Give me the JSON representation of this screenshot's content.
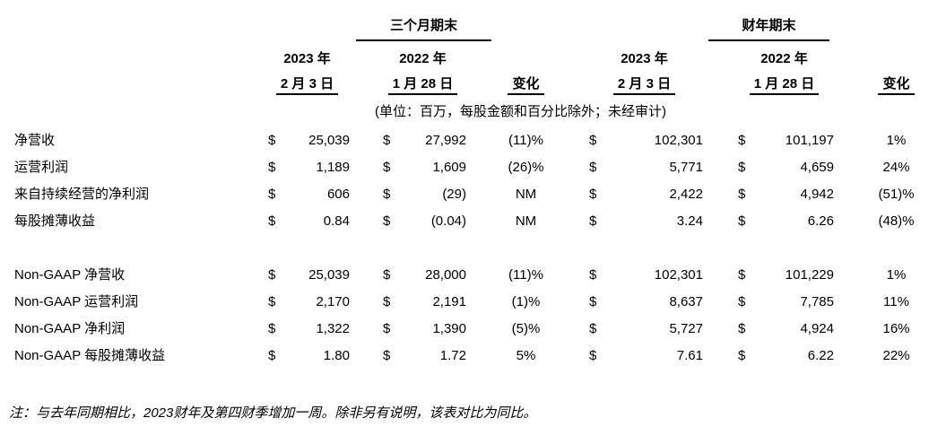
{
  "table": {
    "group_headers": {
      "three_months_ended": "三个月期末",
      "fiscal_year_ended": "财年期末"
    },
    "columns": {
      "q2023_year": "2023 年",
      "q2023_date": "2 月 3 日",
      "q2022_year": "2022 年",
      "q2022_date": "1 月 28 日",
      "q_change_label": "变化",
      "fy2023_year": "2023 年",
      "fy2023_date": "2 月 3 日",
      "fy2022_year": "2022 年",
      "fy2022_date": "1 月 28 日",
      "fy_change_label": "变化"
    },
    "unit_note": "(单位：百万，每股金额和百分比除外；未经审计)",
    "currency": "$",
    "gaap_rows": [
      {
        "label": "净营收",
        "q2023": "25,039",
        "q2022": "27,992",
        "q_change": "(11)%",
        "fy2023": "102,301",
        "fy2022": "101,197",
        "fy_change": "1%"
      },
      {
        "label": "运营利润",
        "q2023": "1,189",
        "q2022": "1,609",
        "q_change": "(26)%",
        "fy2023": "5,771",
        "fy2022": "4,659",
        "fy_change": "24%"
      },
      {
        "label": "来自持续经营的净利润",
        "q2023": "606",
        "q2022": "(29)",
        "q_change": "NM",
        "fy2023": "2,422",
        "fy2022": "4,942",
        "fy_change": "(51)%"
      },
      {
        "label": "每股摊薄收益",
        "q2023": "0.84",
        "q2022": "(0.04)",
        "q_change": "NM",
        "fy2023": "3.24",
        "fy2022": "6.26",
        "fy_change": "(48)%"
      }
    ],
    "non_gaap_rows": [
      {
        "label": "Non-GAAP 净营收",
        "q2023": "25,039",
        "q2022": "28,000",
        "q_change": "(11)%",
        "fy2023": "102,301",
        "fy2022": "101,229",
        "fy_change": "1%"
      },
      {
        "label": "Non-GAAP 运营利润",
        "q2023": "2,170",
        "q2022": "2,191",
        "q_change": "(1)%",
        "fy2023": "8,637",
        "fy2022": "7,785",
        "fy_change": "11%"
      },
      {
        "label": "Non-GAAP 净利润",
        "q2023": "1,322",
        "q2022": "1,390",
        "q_change": "(5)%",
        "fy2023": "5,727",
        "fy2022": "4,924",
        "fy_change": "16%"
      },
      {
        "label": "Non-GAAP 每股摊薄收益",
        "q2023": "1.80",
        "q2022": "1.72",
        "q_change": "5%",
        "fy2023": "7.61",
        "fy2022": "6.22",
        "fy_change": "22%"
      }
    ],
    "footnote": "注：与去年同期相比，2023财年及第四财季增加一周。除非另有说明，该表对比为同比。"
  }
}
